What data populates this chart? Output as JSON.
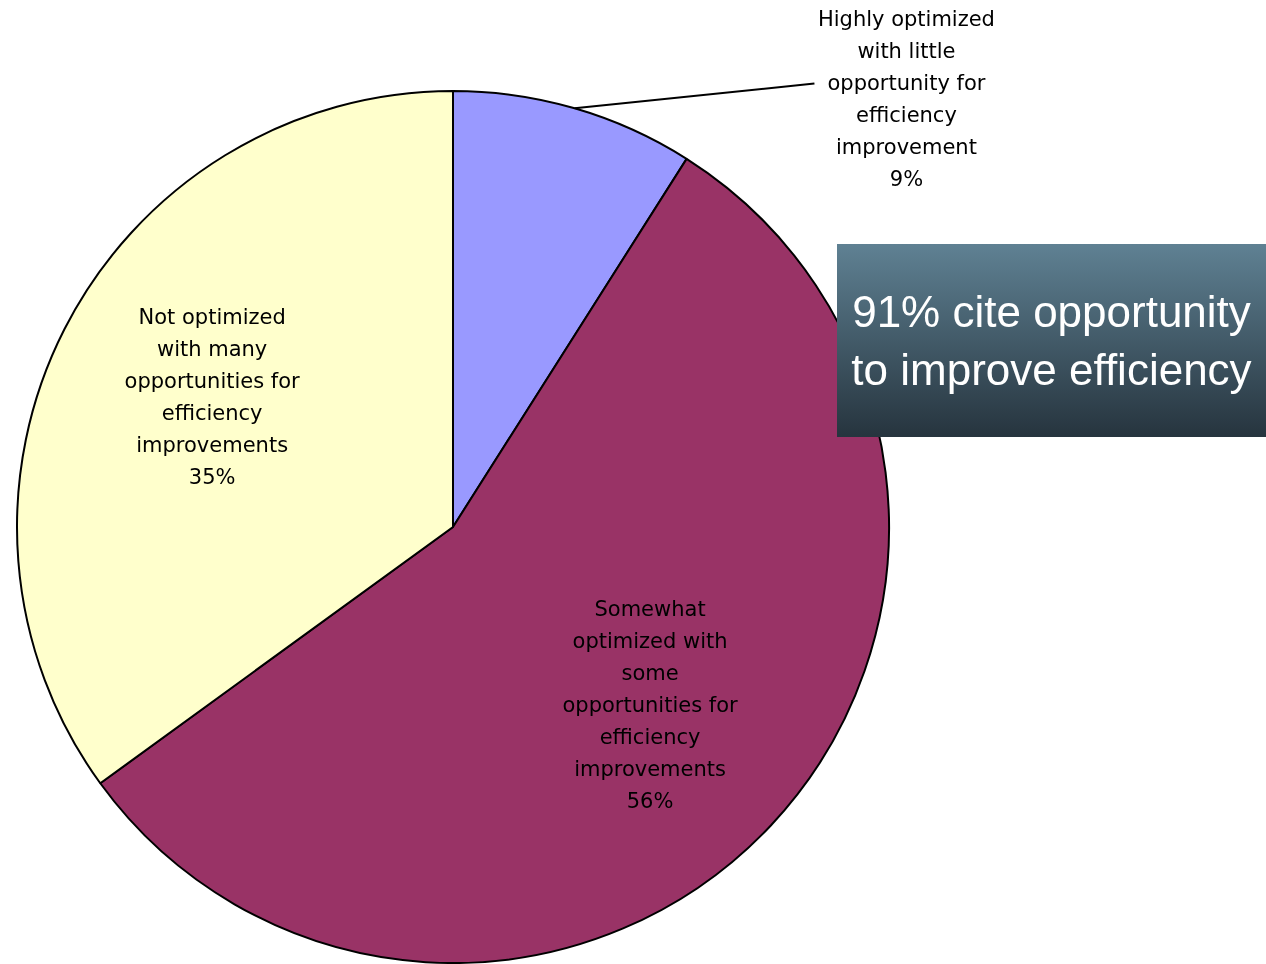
{
  "chart_data": {
    "type": "pie",
    "categories": [
      "Highly optimized with little opportunity for efficiency improvement",
      "Somewhat optimized with some opportunities for efficiency improvements",
      "Not optimized with many opportunities for efficiency improvements"
    ],
    "values": [
      9,
      56,
      35
    ],
    "value_labels": [
      "9%",
      "56%",
      "35%"
    ],
    "colors": [
      "#9999ff",
      "#993366",
      "#ffffcc"
    ],
    "legend": false,
    "annotations": [
      "91% cite opportunity to improve efficiency"
    ]
  }
}
